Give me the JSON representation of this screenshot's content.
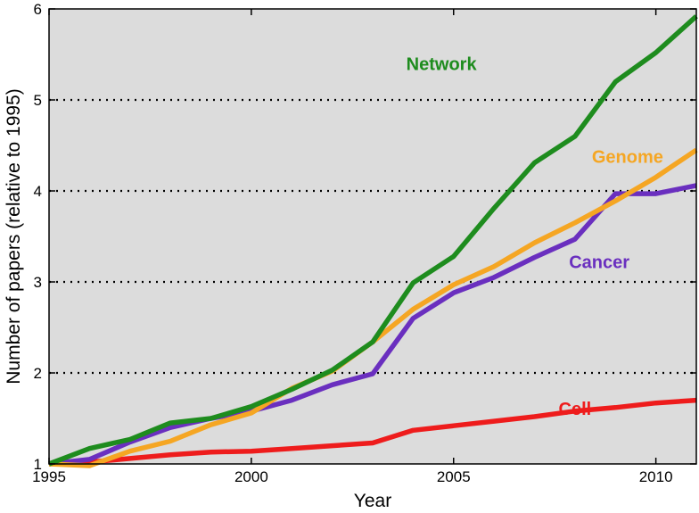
{
  "chart_data": {
    "type": "line",
    "title": "",
    "xlabel": "Year",
    "ylabel": "Number of papers (relative to 1995)",
    "xlim": [
      1995,
      2011
    ],
    "ylim": [
      1,
      6
    ],
    "xticks": [
      1995,
      2000,
      2005,
      2010
    ],
    "yticks": [
      1,
      2,
      3,
      4,
      5,
      6
    ],
    "ygrid": [
      2,
      3,
      4,
      5
    ],
    "grid": "horizontal dotted",
    "background": "#dcdcdc",
    "x": [
      1995,
      1996,
      1997,
      1998,
      1999,
      2000,
      2001,
      2002,
      2003,
      2004,
      2005,
      2006,
      2007,
      2008,
      2009,
      2010,
      2011
    ],
    "series": [
      {
        "name": "Network",
        "color": "#1e8c1e",
        "values": [
          1.0,
          1.17,
          1.27,
          1.45,
          1.5,
          1.63,
          1.82,
          2.03,
          2.34,
          2.99,
          3.28,
          3.81,
          4.31,
          4.6,
          5.2,
          5.52,
          5.92
        ]
      },
      {
        "name": "Genome",
        "color": "#f5a623",
        "values": [
          1.0,
          0.98,
          1.14,
          1.25,
          1.43,
          1.56,
          1.83,
          2.02,
          2.34,
          2.7,
          2.97,
          3.17,
          3.43,
          3.65,
          3.89,
          4.15,
          4.45
        ]
      },
      {
        "name": "Cancer",
        "color": "#6a2fbf",
        "values": [
          1.0,
          1.05,
          1.24,
          1.4,
          1.5,
          1.58,
          1.7,
          1.87,
          1.99,
          2.6,
          2.88,
          3.05,
          3.27,
          3.47,
          3.97,
          3.97,
          4.06
        ]
      },
      {
        "name": "Cell",
        "color": "#ee1c1c",
        "values": [
          1.0,
          1.02,
          1.06,
          1.1,
          1.13,
          1.14,
          1.17,
          1.2,
          1.23,
          1.37,
          1.42,
          1.47,
          1.52,
          1.58,
          1.62,
          1.67,
          1.7
        ]
      }
    ]
  }
}
